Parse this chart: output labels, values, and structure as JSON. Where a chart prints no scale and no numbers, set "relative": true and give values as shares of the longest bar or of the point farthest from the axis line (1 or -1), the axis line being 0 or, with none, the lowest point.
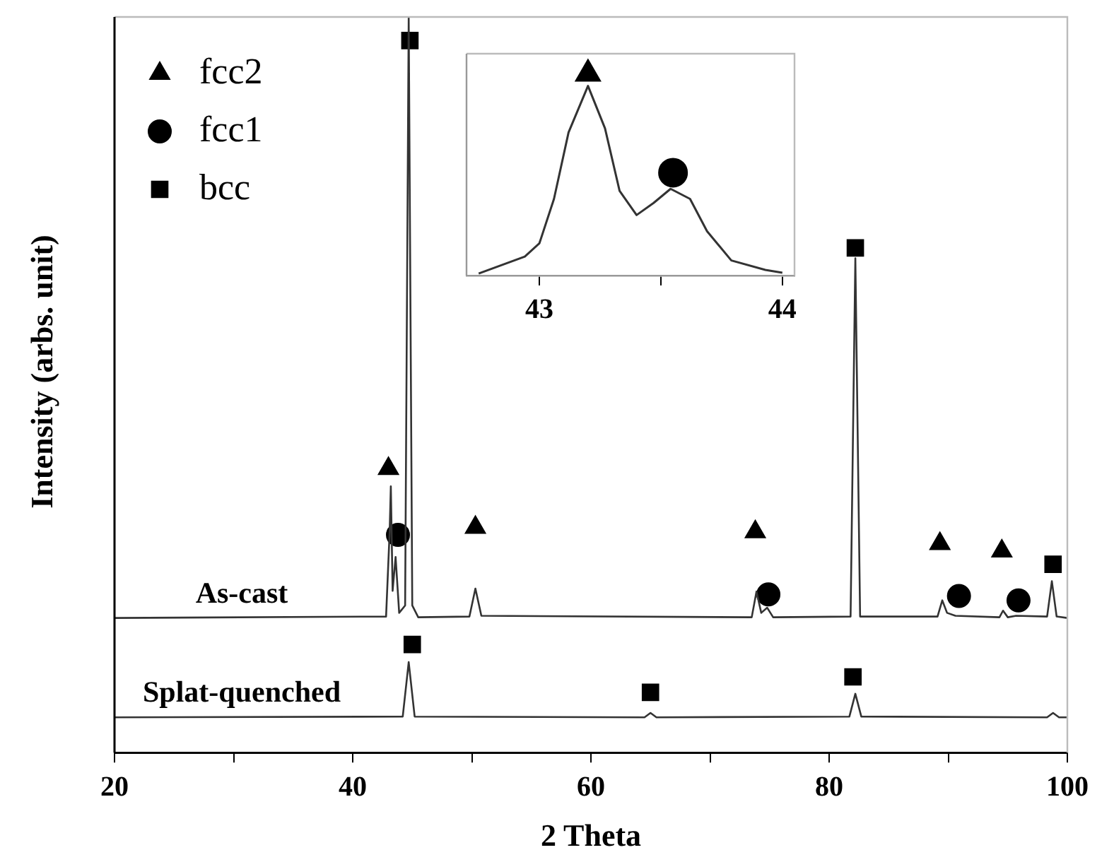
{
  "chart_data": [
    {
      "type": "line",
      "xlabel": "2 Theta",
      "ylabel": "Intensity (arbs. unit)",
      "relative": true,
      "grid": false,
      "legend": "top left",
      "xlim": [
        20,
        100
      ],
      "xticks": [
        20,
        {
          "value": 30,
          "label": null
        },
        40,
        {
          "value": 50,
          "label": null
        },
        60,
        {
          "value": 70,
          "label": null
        },
        80,
        {
          "value": 90,
          "label": null
        },
        100
      ],
      "series": [
        {
          "name": "As-cast",
          "type": "line",
          "marker": "none",
          "color": "#333333",
          "x": [
            20,
            42.8,
            43.1,
            43.2,
            43.35,
            43.6,
            43.9,
            44.4,
            44.7,
            45.0,
            45.5,
            49.8,
            50.3,
            50.8,
            73.5,
            73.9,
            74.3,
            74.8,
            75.3,
            81.8,
            82.2,
            82.6,
            89.1,
            89.5,
            89.9,
            90.6,
            94.3,
            94.6,
            95.0,
            95.7,
            98.3,
            98.7,
            99.1,
            100
          ],
          "values": [
            0.183,
            0.185,
            0.3,
            0.362,
            0.22,
            0.266,
            0.19,
            0.2,
            1.0,
            0.2,
            0.184,
            0.185,
            0.223,
            0.186,
            0.184,
            0.219,
            0.19,
            0.197,
            0.184,
            0.185,
            0.672,
            0.185,
            0.185,
            0.207,
            0.19,
            0.186,
            0.184,
            0.193,
            0.184,
            0.186,
            0.185,
            0.233,
            0.185,
            0.183
          ]
        },
        {
          "name": "Splat-quenched",
          "type": "line",
          "marker": "none",
          "color": "#333333",
          "x": [
            20,
            44.2,
            44.7,
            45.2,
            64.5,
            65,
            65.5,
            81.7,
            82.2,
            82.7,
            98.3,
            98.8,
            99.3,
            100
          ],
          "values": [
            0.048,
            0.049,
            0.123,
            0.049,
            0.048,
            0.054,
            0.048,
            0.049,
            0.08,
            0.049,
            0.048,
            0.054,
            0.048,
            0.048
          ]
        },
        {
          "name": "fcc2",
          "type": "scatter",
          "marker": "triangle",
          "color": "#000000",
          "x": [
            43.0,
            50.3,
            73.8,
            89.3,
            94.5
          ],
          "values": [
            0.386,
            0.306,
            0.3,
            0.284,
            0.274
          ]
        },
        {
          "name": "fcc1",
          "type": "scatter",
          "marker": "circle",
          "color": "#000000",
          "x": [
            43.8,
            74.9,
            90.9,
            95.9
          ],
          "values": [
            0.296,
            0.215,
            0.213,
            0.207
          ]
        },
        {
          "name": "bcc",
          "type": "scatter",
          "marker": "square",
          "color": "#000000",
          "x": [
            44.8,
            82.2,
            98.8,
            45.0,
            65.0,
            82.0
          ],
          "values": [
            0.968,
            0.686,
            0.256,
            0.147,
            0.082,
            0.103
          ]
        }
      ]
    },
    {
      "type": "line",
      "relative": true,
      "grid": false,
      "xlim": [
        42.7,
        44.05
      ],
      "xticks": [
        43,
        {
          "value": 43.5,
          "label": null
        },
        44
      ],
      "series": [
        {
          "type": "line",
          "marker": "none",
          "color": "#333333",
          "x": [
            42.75,
            42.94,
            43.0,
            43.06,
            43.12,
            43.2,
            43.27,
            43.33,
            43.4,
            43.47,
            43.54,
            43.62,
            43.69,
            43.79,
            43.93,
            44.0
          ],
          "values": [
            0.01,
            0.094,
            0.16,
            0.38,
            0.71,
            0.94,
            0.73,
            0.42,
            0.3,
            0.36,
            0.43,
            0.38,
            0.22,
            0.075,
            0.028,
            0.014
          ]
        },
        {
          "type": "scatter",
          "marker": "triangle",
          "color": "#000000",
          "x": [
            43.2
          ],
          "values": [
            1
          ]
        },
        {
          "type": "scatter",
          "marker": "circle",
          "color": "#000000",
          "x": [
            43.55
          ],
          "values": [
            0.51
          ]
        }
      ]
    }
  ]
}
